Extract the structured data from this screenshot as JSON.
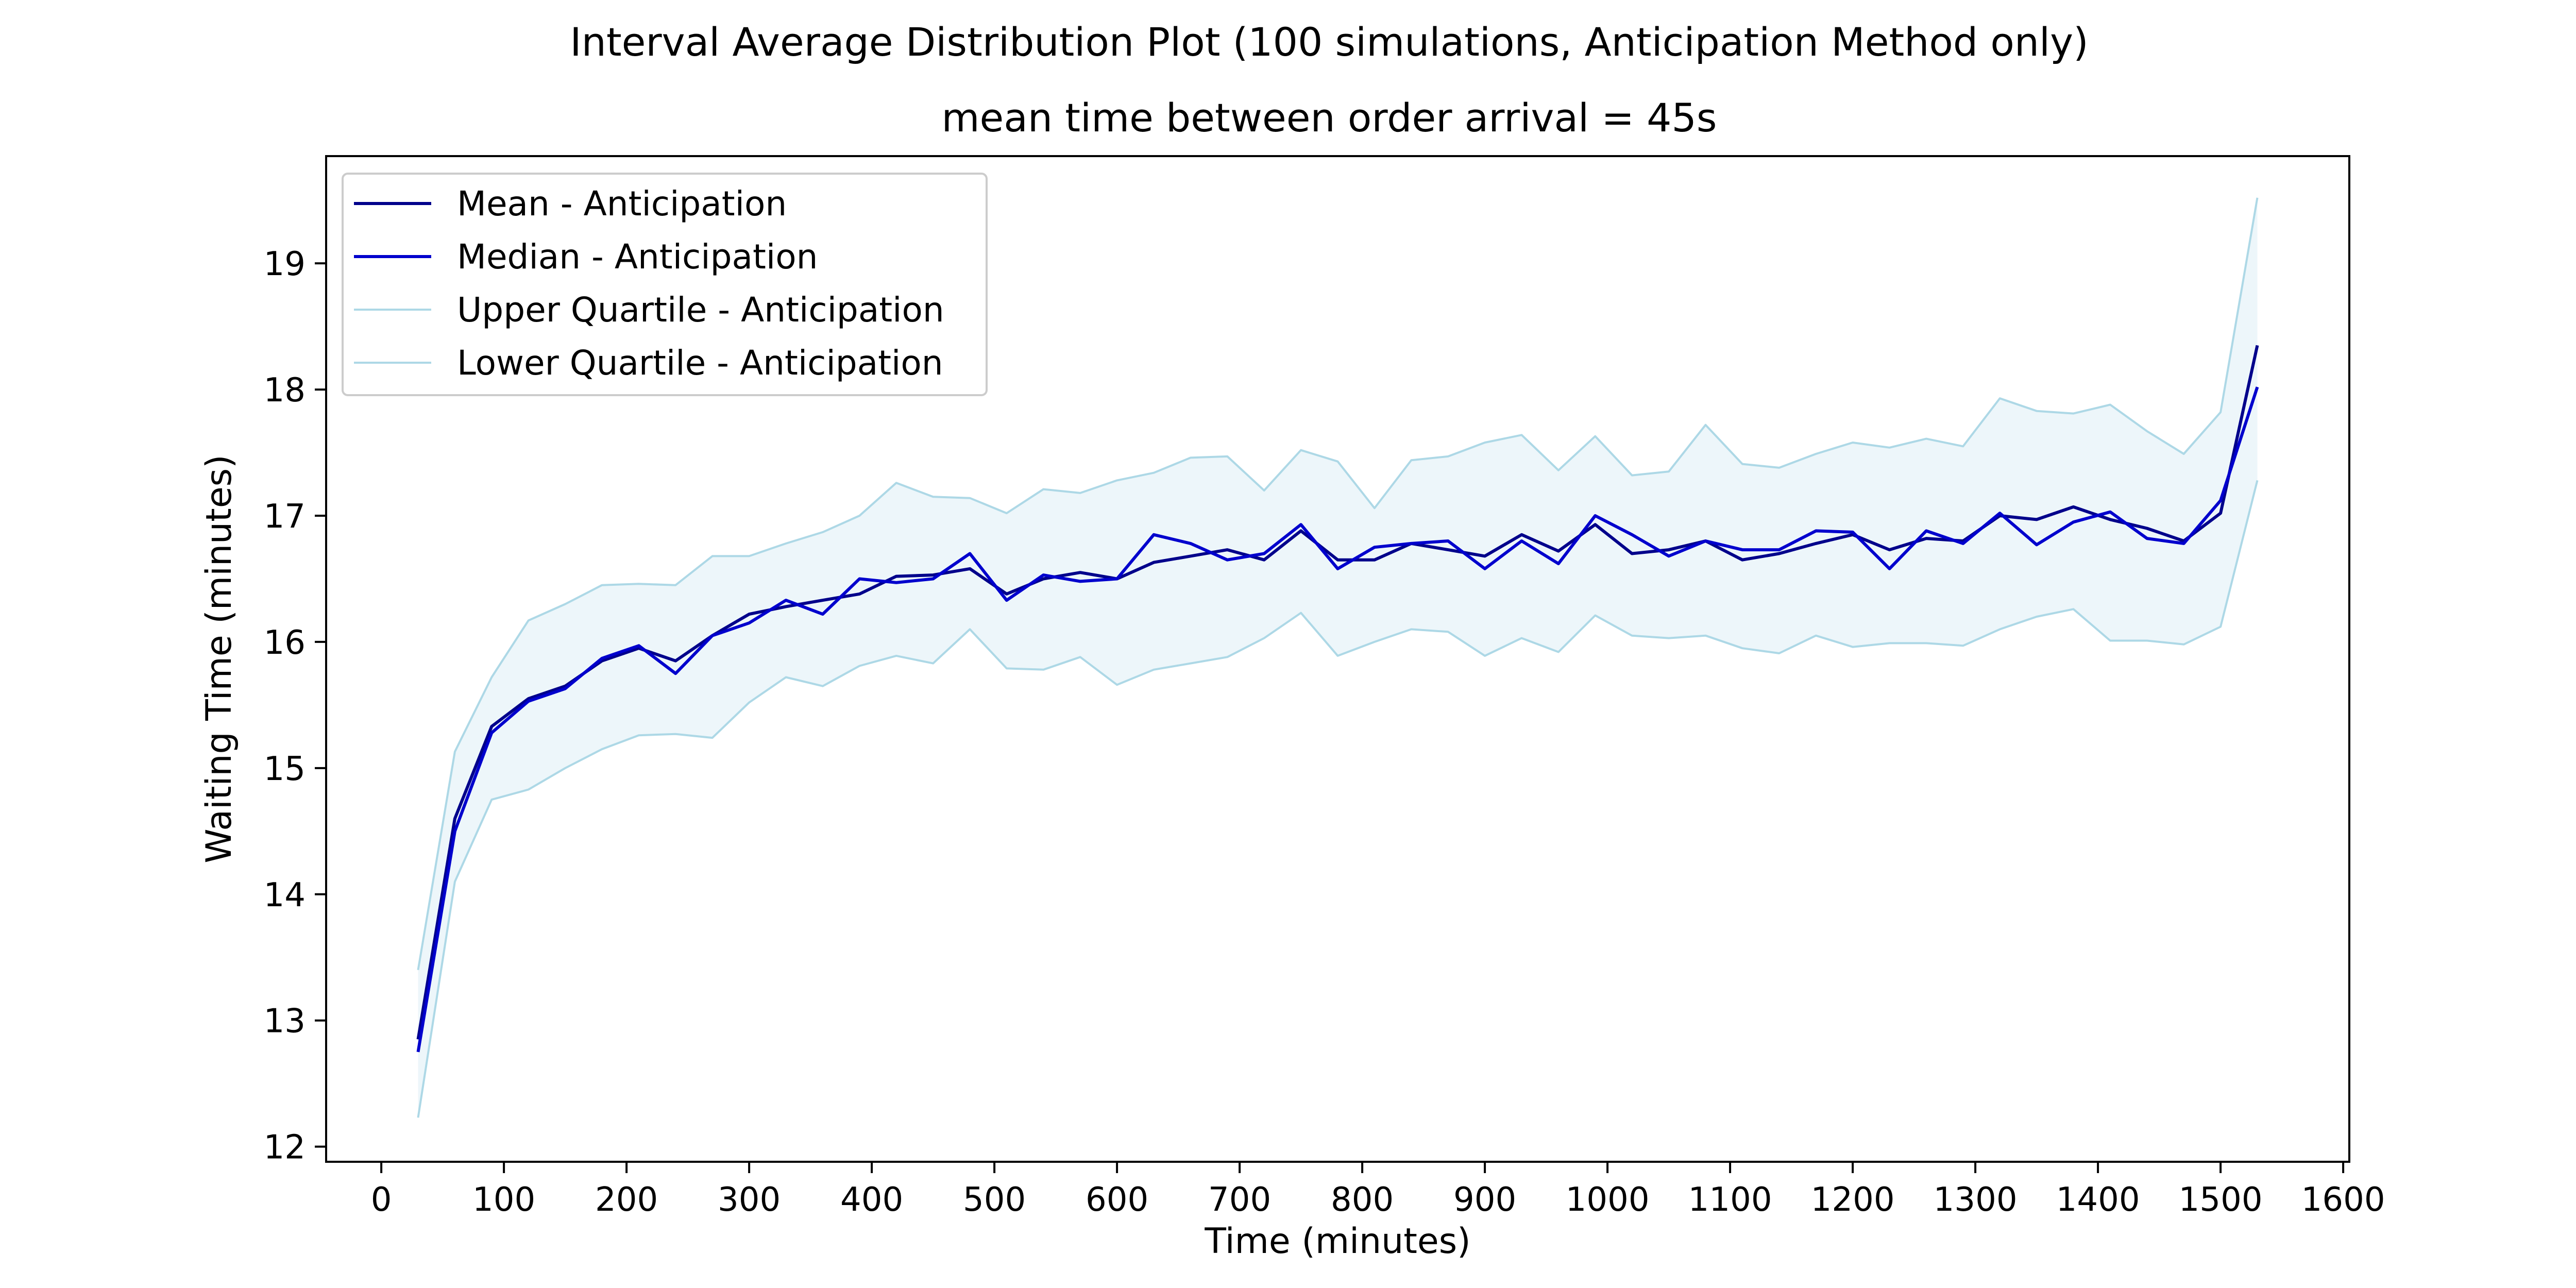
{
  "chart_data": {
    "type": "line",
    "title": "Interval Average Distribution Plot (100 simulations, Anticipation Method only)",
    "subtitle": "mean time between order arrival = 45s",
    "xlabel": "Time (minutes)",
    "ylabel": "Waiting Time (minutes)",
    "xlim": [
      -45,
      1605
    ],
    "ylim": [
      11.88,
      19.85
    ],
    "xticks": [
      0,
      100,
      200,
      300,
      400,
      500,
      600,
      700,
      800,
      900,
      1000,
      1100,
      1200,
      1300,
      1400,
      1500,
      1600
    ],
    "yticks": [
      12,
      13,
      14,
      15,
      16,
      17,
      18,
      19
    ],
    "legend_position": "upper left",
    "grid": false,
    "x": [
      30,
      60,
      90,
      120,
      150,
      180,
      210,
      240,
      270,
      300,
      330,
      360,
      390,
      420,
      450,
      480,
      510,
      540,
      570,
      600,
      630,
      660,
      690,
      720,
      750,
      780,
      810,
      840,
      870,
      900,
      930,
      960,
      990,
      1020,
      1050,
      1080,
      1110,
      1140,
      1170,
      1200,
      1230,
      1260,
      1290,
      1320,
      1350,
      1380,
      1410,
      1440,
      1470,
      1500,
      1530
    ],
    "series": [
      {
        "name": "Mean - Anticipation",
        "color": "#00008b",
        "values": [
          12.85,
          14.6,
          15.33,
          15.55,
          15.65,
          15.85,
          15.95,
          15.85,
          16.05,
          16.22,
          16.28,
          16.33,
          16.38,
          16.52,
          16.53,
          16.58,
          16.38,
          16.5,
          16.55,
          16.5,
          16.63,
          16.68,
          16.73,
          16.65,
          16.88,
          16.65,
          16.65,
          16.78,
          16.73,
          16.68,
          16.85,
          16.72,
          16.93,
          16.7,
          16.73,
          16.8,
          16.65,
          16.7,
          16.78,
          16.85,
          16.73,
          16.82,
          16.8,
          17.0,
          16.97,
          17.07,
          16.97,
          16.9,
          16.8,
          17.02,
          18.35
        ]
      },
      {
        "name": "Median - Anticipation",
        "color": "#0000cd",
        "values": [
          12.75,
          14.5,
          15.28,
          15.53,
          15.63,
          15.87,
          15.97,
          15.75,
          16.05,
          16.15,
          16.33,
          16.22,
          16.5,
          16.47,
          16.5,
          16.7,
          16.33,
          16.53,
          16.48,
          16.5,
          16.85,
          16.78,
          16.65,
          16.7,
          16.93,
          16.58,
          16.75,
          16.78,
          16.8,
          16.58,
          16.8,
          16.62,
          17.0,
          16.85,
          16.68,
          16.8,
          16.73,
          16.73,
          16.88,
          16.87,
          16.58,
          16.88,
          16.78,
          17.02,
          16.77,
          16.95,
          17.03,
          16.82,
          16.78,
          17.12,
          18.02
        ]
      },
      {
        "name": "Upper Quartile - Anticipation",
        "color": "#add8e6",
        "values": [
          13.4,
          15.13,
          15.72,
          16.17,
          16.3,
          16.45,
          16.46,
          16.45,
          16.68,
          16.68,
          16.78,
          16.87,
          17.0,
          17.26,
          17.15,
          17.14,
          17.02,
          17.21,
          17.18,
          17.28,
          17.34,
          17.46,
          17.47,
          17.2,
          17.52,
          17.43,
          17.06,
          17.44,
          17.47,
          17.58,
          17.64,
          17.36,
          17.63,
          17.32,
          17.35,
          17.72,
          17.41,
          17.38,
          17.49,
          17.58,
          17.54,
          17.61,
          17.55,
          17.93,
          17.83,
          17.81,
          17.88,
          17.67,
          17.49,
          17.82,
          19.52
        ]
      },
      {
        "name": "Lower Quartile - Anticipation",
        "color": "#add8e6",
        "values": [
          12.23,
          14.1,
          14.75,
          14.83,
          15.0,
          15.15,
          15.26,
          15.27,
          15.24,
          15.52,
          15.72,
          15.65,
          15.81,
          15.89,
          15.83,
          16.1,
          15.79,
          15.78,
          15.88,
          15.66,
          15.78,
          15.83,
          15.88,
          16.03,
          16.23,
          15.89,
          16.0,
          16.1,
          16.08,
          15.89,
          16.03,
          15.92,
          16.21,
          16.05,
          16.03,
          16.05,
          15.95,
          15.91,
          16.05,
          15.96,
          15.99,
          15.99,
          15.97,
          16.1,
          16.2,
          16.26,
          16.01,
          16.01,
          15.98,
          16.12,
          17.28
        ]
      }
    ],
    "fill": {
      "between": [
        "Lower Quartile - Anticipation",
        "Upper Quartile - Anticipation"
      ],
      "color": "#add8e6",
      "opacity": 0.22
    }
  }
}
